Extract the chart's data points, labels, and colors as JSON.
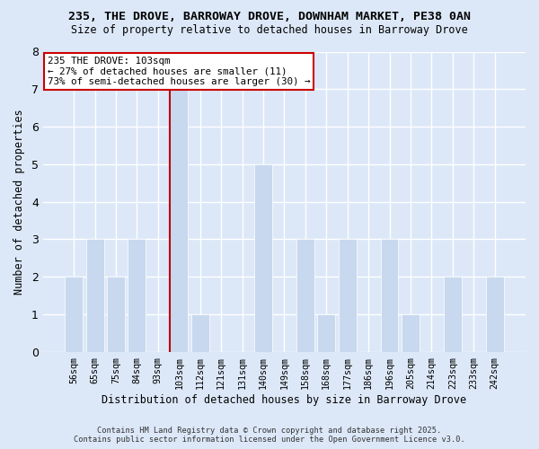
{
  "title_line1": "235, THE DROVE, BARROWAY DROVE, DOWNHAM MARKET, PE38 0AN",
  "title_line2": "Size of property relative to detached houses in Barroway Drove",
  "xlabel": "Distribution of detached houses by size in Barroway Drove",
  "ylabel": "Number of detached properties",
  "categories": [
    "56sqm",
    "65sqm",
    "75sqm",
    "84sqm",
    "93sqm",
    "103sqm",
    "112sqm",
    "121sqm",
    "131sqm",
    "140sqm",
    "149sqm",
    "158sqm",
    "168sqm",
    "177sqm",
    "186sqm",
    "196sqm",
    "205sqm",
    "214sqm",
    "223sqm",
    "233sqm",
    "242sqm"
  ],
  "values": [
    2,
    3,
    2,
    3,
    0,
    7,
    1,
    0,
    0,
    5,
    0,
    3,
    1,
    3,
    0,
    3,
    1,
    0,
    2,
    0,
    2
  ],
  "highlight_index": 5,
  "bar_color": "#c8d8ee",
  "highlight_line_color": "#bb0000",
  "ylim": [
    0,
    8
  ],
  "yticks": [
    0,
    1,
    2,
    3,
    4,
    5,
    6,
    7,
    8
  ],
  "annotation_title": "235 THE DROVE: 103sqm",
  "annotation_line1": "← 27% of detached houses are smaller (11)",
  "annotation_line2": "73% of semi-detached houses are larger (30) →",
  "bg_color": "#dce8f8",
  "plot_bg_color": "#dce8f8",
  "footer_line1": "Contains HM Land Registry data © Crown copyright and database right 2025.",
  "footer_line2": "Contains public sector information licensed under the Open Government Licence v3.0.",
  "grid_color": "#ffffff",
  "annotation_box_facecolor": "#ffffff",
  "annotation_box_edgecolor": "#cc0000"
}
